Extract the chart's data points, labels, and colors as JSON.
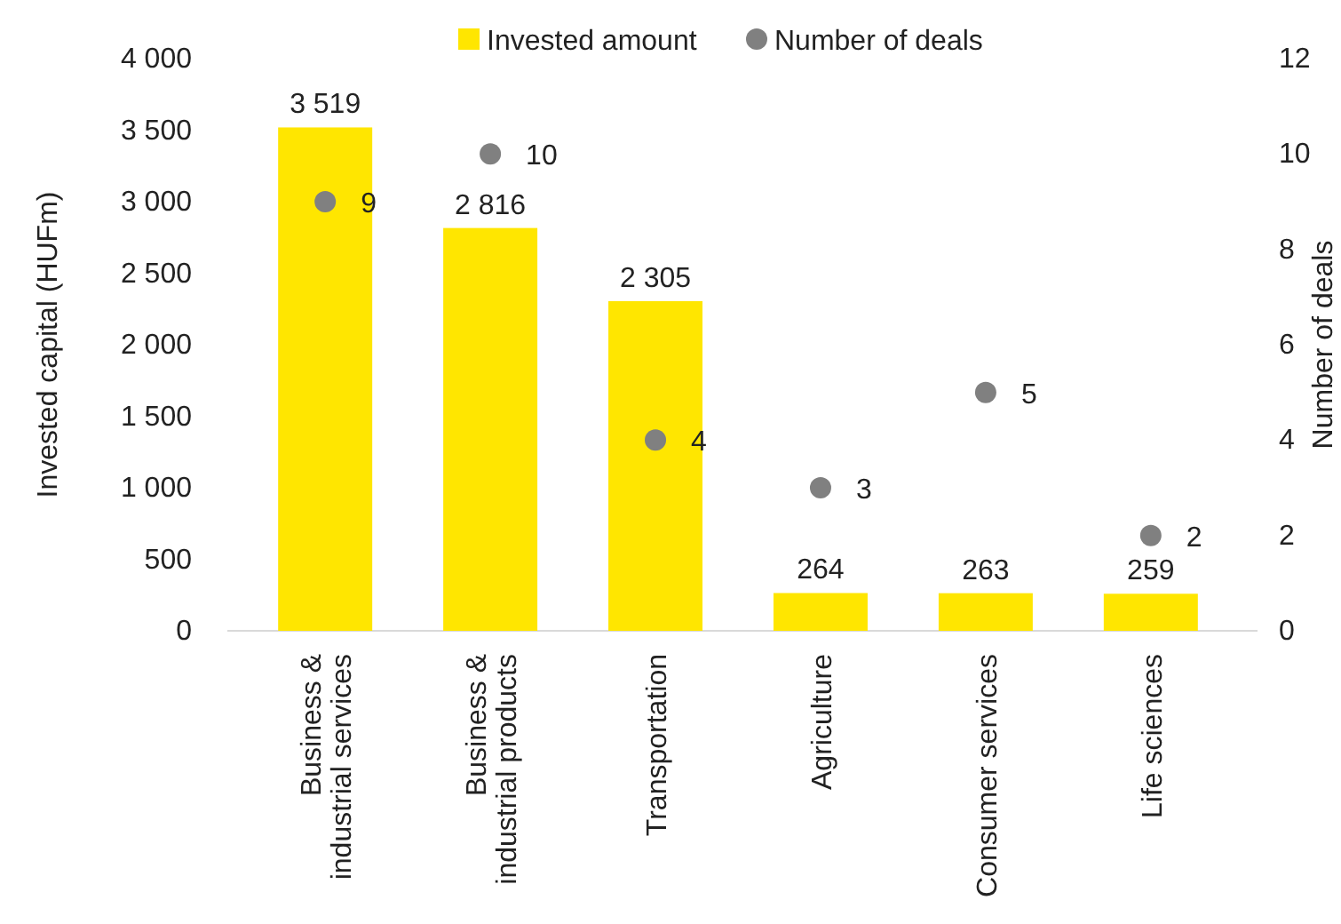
{
  "chart_data": {
    "type": "bar",
    "ylabel": "Invested capital (HUFm)",
    "y2label": "Number of deals",
    "categories": [
      "Business &\nindustrial services",
      "Business &\nindustrial products",
      "Transportation",
      "Agriculture",
      "Consumer services",
      "Life sciences"
    ],
    "series": [
      {
        "name": "Invested amount",
        "color": "#ffe600",
        "values": [
          3519,
          2816,
          2305,
          264,
          263,
          259
        ],
        "value_labels": [
          "3 519",
          "2 816",
          "2 305",
          "264",
          "263",
          "259"
        ]
      },
      {
        "name": "Number of deals",
        "type": "scatter",
        "axis": "y2",
        "color": "#808080",
        "values": [
          9,
          10,
          4,
          3,
          5,
          2
        ]
      }
    ],
    "ylim": [
      0,
      4000
    ],
    "yticks": [
      0,
      500,
      {
        "value": 1000,
        "label": "1 000"
      },
      {
        "value": 1500,
        "label": "1 500"
      },
      {
        "value": 2000,
        "label": "2 000"
      },
      {
        "value": 2500,
        "label": "2 500"
      },
      {
        "value": 3000,
        "label": "3 000"
      },
      {
        "value": 3500,
        "label": "3 500"
      },
      {
        "value": 4000,
        "label": "4 000"
      }
    ],
    "y2lim": [
      0,
      12
    ],
    "y2ticks": [
      0,
      2,
      4,
      6,
      8,
      10,
      12
    ],
    "data_labels": true,
    "legend": "top",
    "marker": "circle",
    "grid": false
  }
}
